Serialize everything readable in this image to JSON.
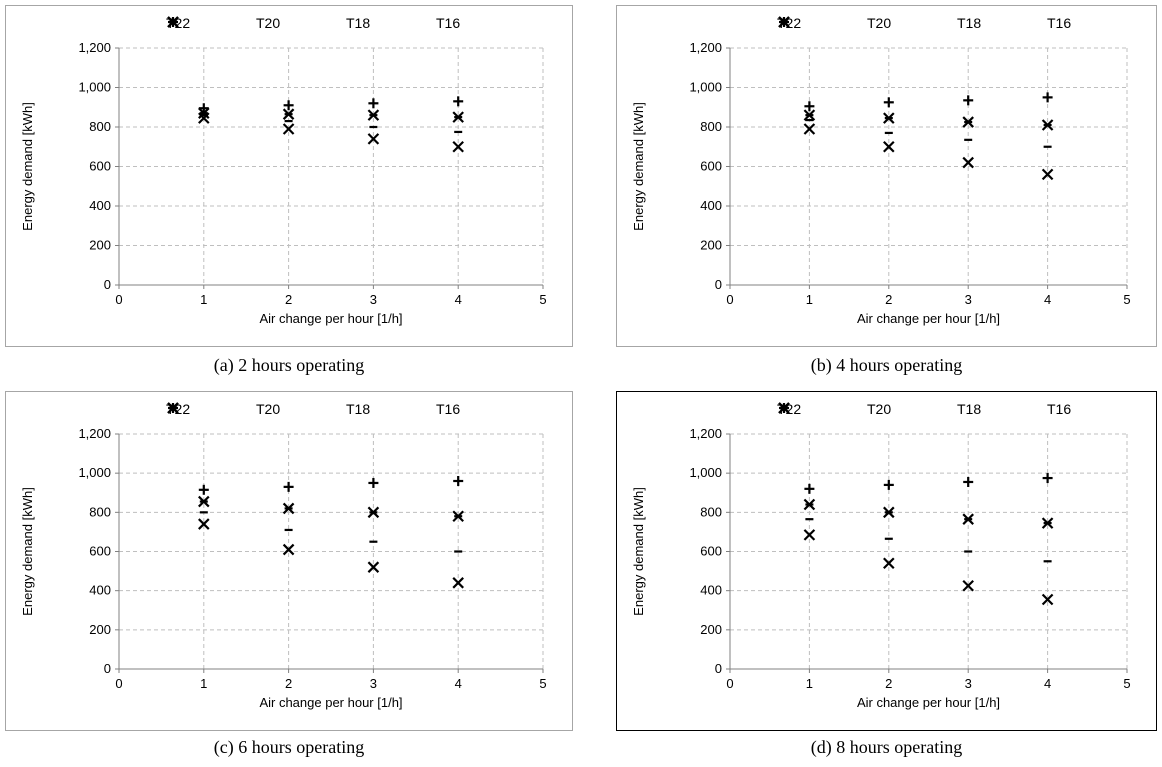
{
  "chart_data": [
    {
      "type": "scatter",
      "caption": "(a) 2 hours operating",
      "xlabel": "Air change per hour [1/h]",
      "ylabel": "Energy demand [kWh]",
      "xlim": [
        0,
        5
      ],
      "ylim": [
        0,
        1200
      ],
      "xticks": [
        "0",
        "1",
        "2",
        "3",
        "4",
        "5"
      ],
      "yticks": [
        "0",
        "200",
        "400",
        "600",
        "800",
        "1,000",
        "1,200"
      ],
      "legend_position": "top",
      "grid": true,
      "x": [
        1,
        2,
        3,
        4
      ],
      "series": [
        {
          "name": "T22",
          "marker": "plus",
          "values": [
            895,
            910,
            920,
            930
          ]
        },
        {
          "name": "T20",
          "marker": "star",
          "values": [
            870,
            865,
            860,
            850
          ]
        },
        {
          "name": "T18",
          "marker": "dash",
          "values": [
            860,
            830,
            800,
            775
          ]
        },
        {
          "name": "T16",
          "marker": "x",
          "values": [
            845,
            790,
            740,
            700
          ]
        }
      ]
    },
    {
      "type": "scatter",
      "caption": "(b) 4 hours operating",
      "xlabel": "Air change per hour [1/h]",
      "ylabel": "Energy demand [kWh]",
      "xlim": [
        0,
        5
      ],
      "ylim": [
        0,
        1200
      ],
      "xticks": [
        "0",
        "1",
        "2",
        "3",
        "4",
        "5"
      ],
      "yticks": [
        "0",
        "200",
        "400",
        "600",
        "800",
        "1,000",
        "1,200"
      ],
      "legend_position": "top",
      "grid": true,
      "x": [
        1,
        2,
        3,
        4
      ],
      "series": [
        {
          "name": "T22",
          "marker": "plus",
          "values": [
            905,
            925,
            935,
            950
          ]
        },
        {
          "name": "T20",
          "marker": "star",
          "values": [
            860,
            845,
            825,
            810
          ]
        },
        {
          "name": "T18",
          "marker": "dash",
          "values": [
            835,
            770,
            735,
            700
          ]
        },
        {
          "name": "T16",
          "marker": "x",
          "values": [
            790,
            700,
            620,
            560
          ]
        }
      ]
    },
    {
      "type": "scatter",
      "caption": "(c) 6 hours operating",
      "xlabel": "Air change per hour [1/h]",
      "ylabel": "Energy demand [kWh]",
      "xlim": [
        0,
        5
      ],
      "ylim": [
        0,
        1200
      ],
      "xticks": [
        "0",
        "1",
        "2",
        "3",
        "4",
        "5"
      ],
      "yticks": [
        "0",
        "200",
        "400",
        "600",
        "800",
        "1,000",
        "1,200"
      ],
      "legend_position": "top",
      "grid": true,
      "x": [
        1,
        2,
        3,
        4
      ],
      "series": [
        {
          "name": "T22",
          "marker": "plus",
          "values": [
            915,
            930,
            950,
            960
          ]
        },
        {
          "name": "T20",
          "marker": "star",
          "values": [
            855,
            820,
            800,
            780
          ]
        },
        {
          "name": "T18",
          "marker": "dash",
          "values": [
            800,
            710,
            650,
            600
          ]
        },
        {
          "name": "T16",
          "marker": "x",
          "values": [
            740,
            610,
            520,
            440
          ]
        }
      ]
    },
    {
      "type": "scatter",
      "caption": "(d) 8 hours operating",
      "xlabel": "Air change per hour [1/h]",
      "ylabel": "Energy demand [kWh]",
      "xlim": [
        0,
        5
      ],
      "ylim": [
        0,
        1200
      ],
      "xticks": [
        "0",
        "1",
        "2",
        "3",
        "4",
        "5"
      ],
      "yticks": [
        "0",
        "200",
        "400",
        "600",
        "800",
        "1,000",
        "1,200"
      ],
      "legend_position": "top",
      "grid": true,
      "x": [
        1,
        2,
        3,
        4
      ],
      "series": [
        {
          "name": "T22",
          "marker": "plus",
          "values": [
            920,
            940,
            955,
            975
          ]
        },
        {
          "name": "T20",
          "marker": "star",
          "values": [
            840,
            800,
            765,
            745
          ]
        },
        {
          "name": "T18",
          "marker": "dash",
          "values": [
            765,
            665,
            600,
            550
          ]
        },
        {
          "name": "T16",
          "marker": "x",
          "values": [
            685,
            540,
            425,
            355
          ]
        }
      ]
    }
  ]
}
